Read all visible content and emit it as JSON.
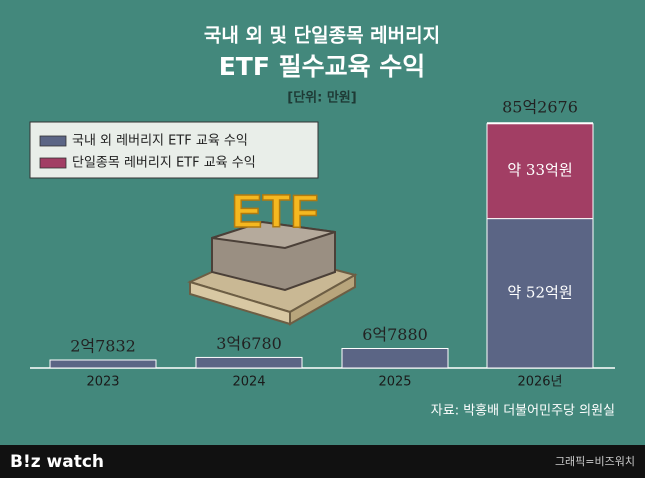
{
  "chart_data": {
    "type": "stacked-bar",
    "title": "국내 외 및 단일종목 레버리지",
    "subtitle": "ETF 필수교육 수익",
    "unit_note": "[단위: 만원]",
    "categories": [
      "2023",
      "2024",
      "2025",
      "2026년"
    ],
    "series": [
      {
        "name": "국내 외 레버리지 ETF 교육 수익",
        "color": "#5b6585",
        "values": [
          27832,
          36780,
          67880,
          520000
        ],
        "value_labels": [
          "2억7832",
          "3억6780",
          "6억7880",
          "약 52억원"
        ]
      },
      {
        "name": "단일종목 레버리지 ETF 교육 수익",
        "color": "#a23e64",
        "values": [
          null,
          null,
          null,
          330000
        ],
        "value_labels": [
          null,
          null,
          null,
          "약 33억원"
        ]
      }
    ],
    "totals": [
      null,
      null,
      null,
      852676
    ],
    "total_labels": [
      null,
      null,
      null,
      "85억2676"
    ],
    "source": "자료: 박홍배 더불어민주당 의원실"
  },
  "footer": {
    "logo": "B!z watch",
    "credit": "그래픽=비즈워치"
  }
}
